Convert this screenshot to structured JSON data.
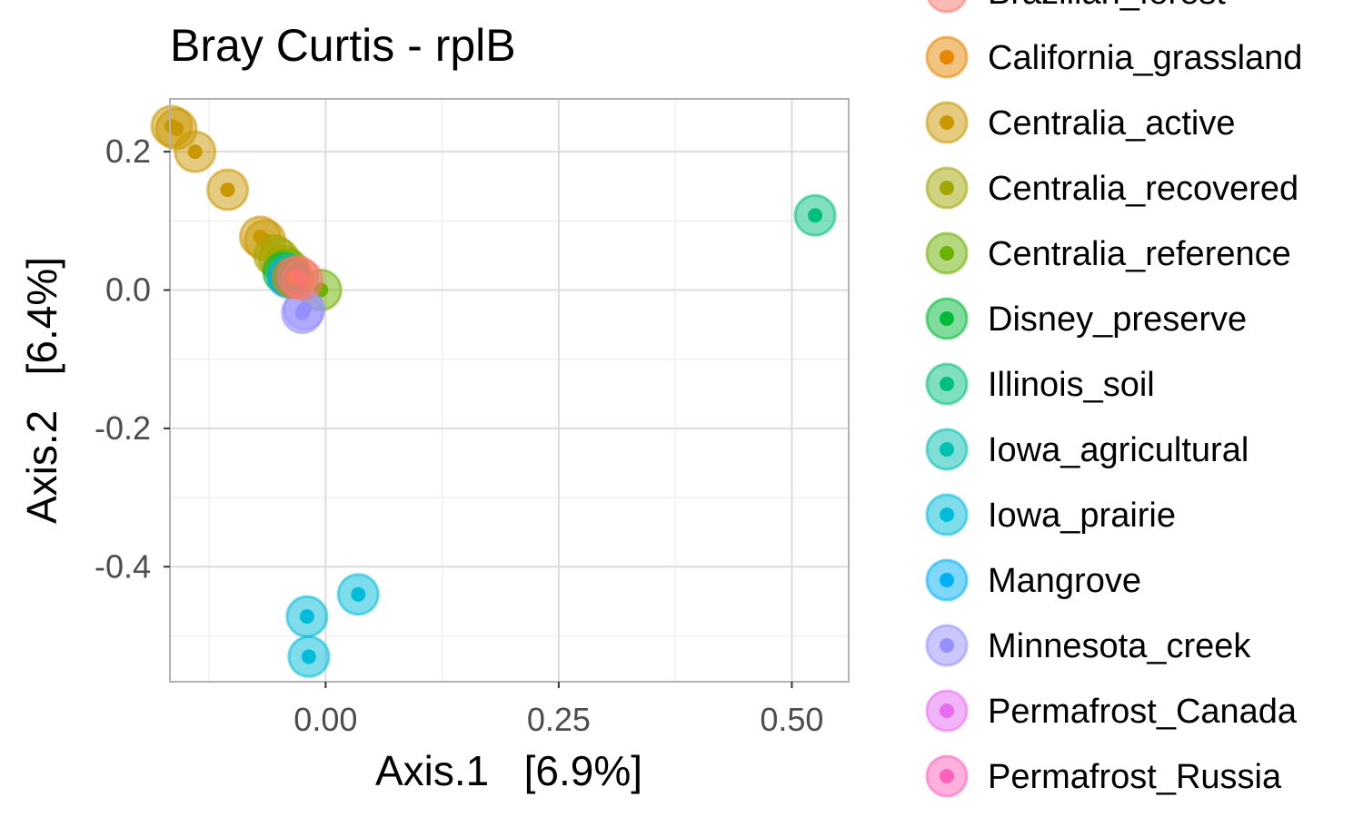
{
  "chart_data": {
    "type": "scatter",
    "title": "Bray Curtis - rplB",
    "xlabel": "Axis.1   [6.9%]",
    "ylabel": "Axis.2   [6.4%]",
    "xlim": [
      -0.166,
      0.56
    ],
    "ylim": [
      -0.565,
      0.275
    ],
    "x_major_ticks": [
      0.0,
      0.25,
      0.5
    ],
    "x_tick_labels": [
      "0.00",
      "0.25",
      "0.50"
    ],
    "x_minor_ticks": [
      -0.125,
      0.125,
      0.375
    ],
    "y_major_ticks": [
      -0.4,
      -0.2,
      0.0,
      0.2
    ],
    "y_tick_labels": [
      "-0.4",
      "-0.2",
      "0.0",
      "0.2"
    ],
    "y_minor_ticks": [
      -0.5,
      -0.3,
      -0.1,
      0.1
    ],
    "grid": true,
    "legend_position": "right",
    "series": [
      {
        "name": "Brazilian_forest",
        "color": "#F8766D",
        "x": [
          -0.03,
          -0.025
        ],
        "y": [
          0.02,
          0.015
        ]
      },
      {
        "name": "California_grassland",
        "color": "#E58700",
        "x": [
          -0.035
        ],
        "y": [
          0.018
        ]
      },
      {
        "name": "Centralia_active",
        "color": "#C99800",
        "x": [
          -0.165,
          -0.16,
          -0.14,
          -0.105,
          -0.07,
          -0.065
        ],
        "y": [
          0.237,
          0.233,
          0.2,
          0.145,
          0.077,
          0.072
        ]
      },
      {
        "name": "Centralia_recovered",
        "color": "#A3A500",
        "x": [
          -0.055,
          -0.05,
          -0.045
        ],
        "y": [
          0.05,
          0.045,
          0.035
        ]
      },
      {
        "name": "Centralia_reference",
        "color": "#6BB100",
        "x": [
          -0.005,
          -0.04
        ],
        "y": [
          0.0,
          0.03
        ]
      },
      {
        "name": "Disney_preserve",
        "color": "#00BA38",
        "x": [
          -0.045,
          -0.04
        ],
        "y": [
          0.025,
          0.02
        ]
      },
      {
        "name": "Illinois_soil",
        "color": "#00BF7D",
        "x": [
          0.525
        ],
        "y": [
          0.108
        ]
      },
      {
        "name": "Iowa_agricultural",
        "color": "#00C0AF",
        "x": [
          -0.04
        ],
        "y": [
          0.022
        ]
      },
      {
        "name": "Iowa_prairie",
        "color": "#00BCD8",
        "x": [
          0.035,
          -0.02,
          -0.018
        ],
        "y": [
          -0.44,
          -0.472,
          -0.53
        ]
      },
      {
        "name": "Mangrove",
        "color": "#00B0F6",
        "x": [
          -0.04
        ],
        "y": [
          0.018
        ]
      },
      {
        "name": "Minnesota_creek",
        "color": "#9590FF",
        "x": [
          -0.025,
          -0.023
        ],
        "y": [
          -0.033,
          -0.028
        ]
      },
      {
        "name": "Permafrost_Canada",
        "color": "#E76BF3",
        "x": [],
        "y": []
      },
      {
        "name": "Permafrost_Russia",
        "color": "#FF62BC",
        "x": [],
        "y": []
      }
    ],
    "legend_colors": [
      "#F8766D",
      "#E58700",
      "#C99800",
      "#A3A500",
      "#6BB100",
      "#00BA38",
      "#00BF7D",
      "#00C0AF",
      "#00BCD8",
      "#00B0F6",
      "#9590FF",
      "#E76BF3",
      "#FF62BC"
    ]
  }
}
